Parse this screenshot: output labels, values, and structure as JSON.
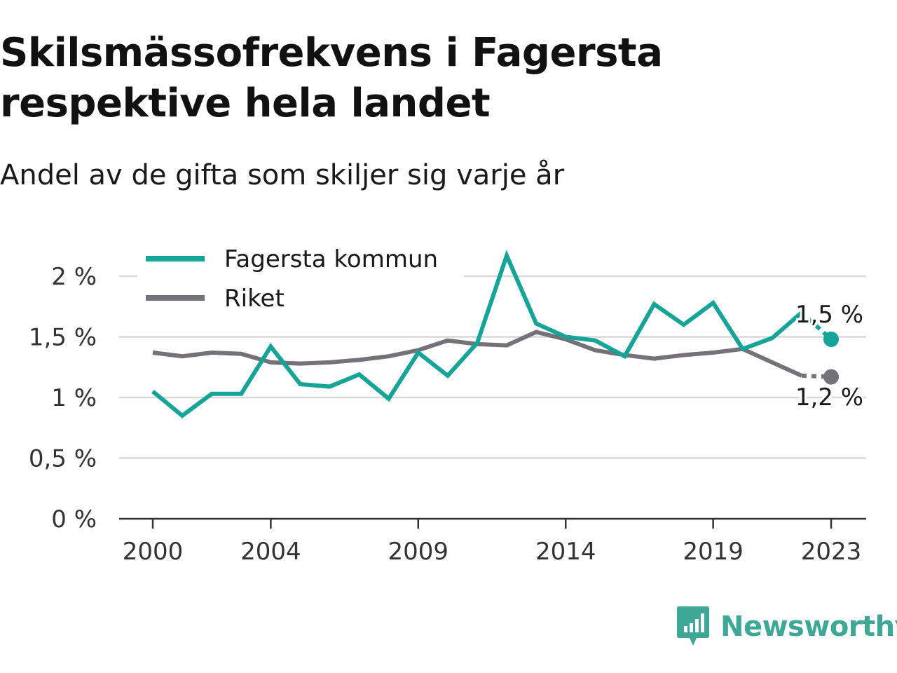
{
  "header": {
    "title": "Skilsmässofrekvens i Fagersta respektive hela landet",
    "subtitle": "Andel av de gifta som skiljer sig varje år"
  },
  "brand": {
    "name": "Newsworthy",
    "color": "#3fa796"
  },
  "chart_data": {
    "type": "line",
    "x": [
      2000,
      2001,
      2002,
      2003,
      2004,
      2005,
      2006,
      2007,
      2008,
      2009,
      2010,
      2011,
      2012,
      2013,
      2014,
      2015,
      2016,
      2017,
      2018,
      2019,
      2020,
      2021,
      2022,
      2023
    ],
    "x_tick_values": [
      2000,
      2004,
      2009,
      2014,
      2019,
      2023
    ],
    "x_tick_labels": [
      "2000",
      "2004",
      "2009",
      "2014",
      "2019",
      "2023"
    ],
    "xlim": [
      2000,
      2023
    ],
    "ylim": [
      0,
      2.2
    ],
    "y_tick_values": [
      0,
      0.5,
      1,
      1.5,
      2
    ],
    "y_tick_labels": [
      "0 %",
      "0,5 %",
      "1 %",
      "1,5 %",
      "2 %"
    ],
    "grid": "horizontal",
    "legend_position": "top-left",
    "series": [
      {
        "name": "Fagersta kommun",
        "color": "#16a398",
        "values": [
          1.05,
          0.85,
          1.03,
          1.03,
          1.42,
          1.11,
          1.09,
          1.19,
          0.99,
          1.37,
          1.18,
          1.45,
          2.17,
          1.61,
          1.5,
          1.47,
          1.34,
          1.77,
          1.6,
          1.78,
          1.4,
          1.49,
          1.7,
          1.48
        ],
        "end_label": "1,5 %"
      },
      {
        "name": "Riket",
        "color": "#747278",
        "values": [
          1.37,
          1.34,
          1.37,
          1.36,
          1.29,
          1.28,
          1.29,
          1.31,
          1.34,
          1.39,
          1.47,
          1.44,
          1.43,
          1.54,
          1.48,
          1.39,
          1.35,
          1.32,
          1.35,
          1.37,
          1.4,
          1.29,
          1.18,
          1.17
        ],
        "end_label": "1,2 %"
      }
    ]
  }
}
